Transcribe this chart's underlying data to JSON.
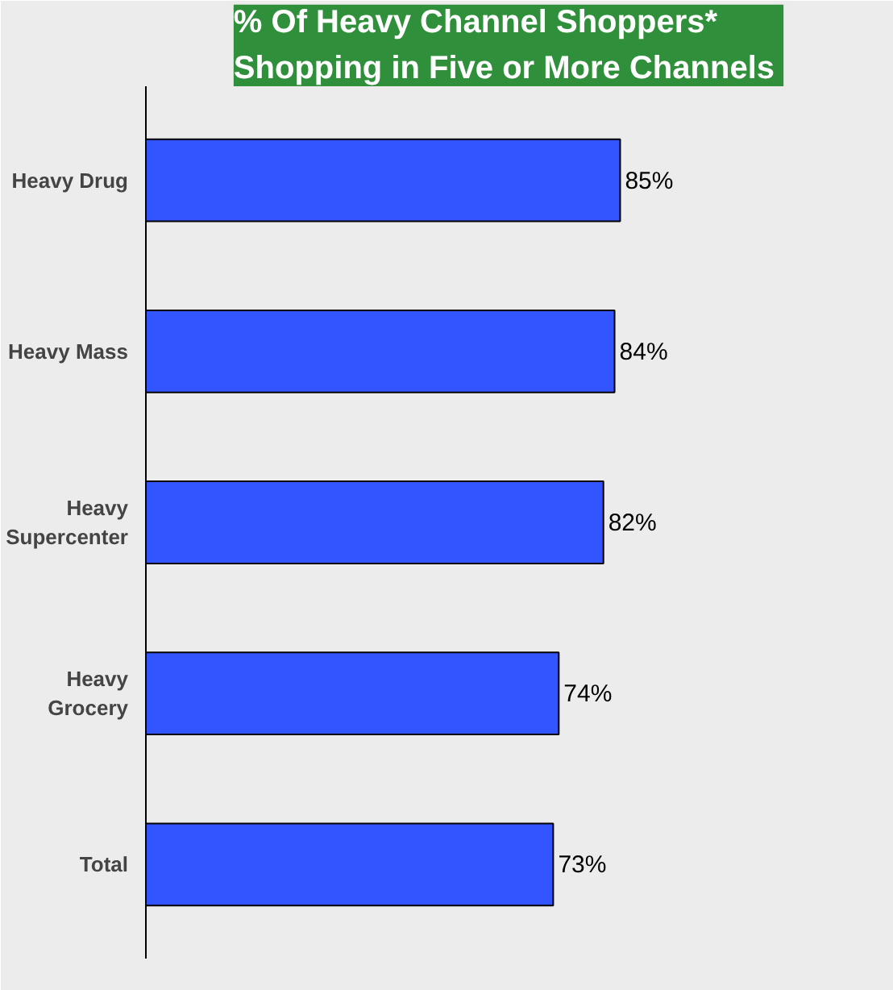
{
  "chart_data": {
    "type": "bar",
    "orientation": "horizontal",
    "title": "% Of Heavy Channel Shoppers*\nShopping  in Five or More Channels",
    "categories": [
      "Heavy Drug",
      "Heavy Mass",
      "Heavy Supercenter",
      "Heavy Grocery",
      "Total"
    ],
    "values": [
      85,
      84,
      82,
      74,
      73
    ],
    "value_labels": [
      "85%",
      "84%",
      "82%",
      "74%",
      "73%"
    ],
    "color": "#3355ff",
    "xlim": [
      0,
      130
    ],
    "tick_labels": "y",
    "grid": false
  }
}
